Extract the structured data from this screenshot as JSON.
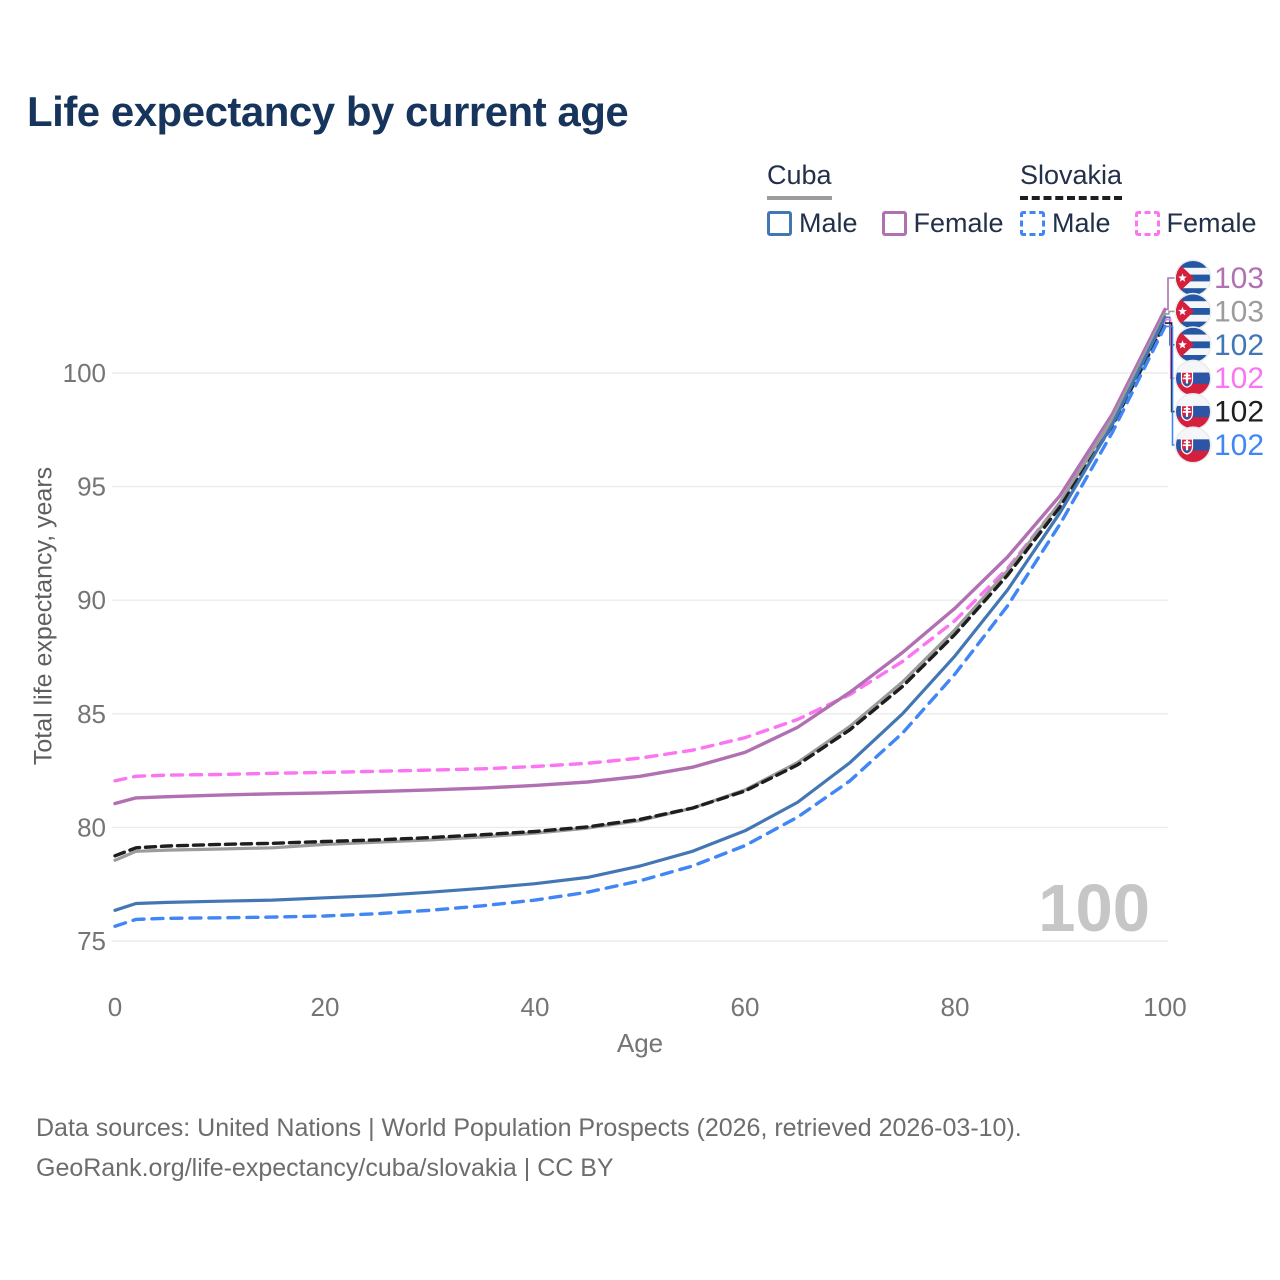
{
  "page": {
    "title": "Life expectancy by current age",
    "watermark": "100",
    "footer_line1": "Data sources: United Nations | World Population Prospects (2026, retrieved 2026-03-10).",
    "footer_line2": "GeoRank.org/life-expectancy/cuba/slovakia | CC BY"
  },
  "legend": {
    "groups": [
      {
        "country": "Cuba",
        "line_style": "solid",
        "underline_color": "#9c9c9c",
        "items": [
          {
            "label": "Male",
            "color": "#4377b4",
            "dashed": false
          },
          {
            "label": "Female",
            "color": "#b170b1",
            "dashed": false
          }
        ]
      },
      {
        "country": "Slovakia",
        "line_style": "dashed",
        "underline_color": "#1e1e1e",
        "items": [
          {
            "label": "Male",
            "color": "#4186f5",
            "dashed": true
          },
          {
            "label": "Female",
            "color": "#fb74f1",
            "dashed": true
          }
        ]
      }
    ]
  },
  "chart_data": {
    "type": "line",
    "title": "Life expectancy by current age",
    "xlabel": "Age",
    "ylabel": "Total life expectancy, years",
    "xlim": [
      0,
      100
    ],
    "ylim": [
      75,
      100
    ],
    "x_ticks": [
      0,
      20,
      40,
      60,
      80,
      100
    ],
    "y_ticks": [
      75,
      80,
      85,
      90,
      95,
      100
    ],
    "grid": "horizontal",
    "grid_color": "#ebebeb",
    "tick_color": "#757575",
    "legend_position": "top-right",
    "series": [
      {
        "name": "Slovakia Female",
        "country": "Slovakia",
        "sex": "Female",
        "color": "#fb74f1",
        "dash": "11 8",
        "width": 3.4,
        "points": [
          [
            0,
            82.05
          ],
          [
            2,
            82.25
          ],
          [
            5,
            82.3
          ],
          [
            10,
            82.33
          ],
          [
            15,
            82.38
          ],
          [
            20,
            82.42
          ],
          [
            25,
            82.47
          ],
          [
            30,
            82.52
          ],
          [
            35,
            82.58
          ],
          [
            40,
            82.68
          ],
          [
            45,
            82.82
          ],
          [
            50,
            83.05
          ],
          [
            55,
            83.4
          ],
          [
            60,
            83.95
          ],
          [
            65,
            84.75
          ],
          [
            70,
            85.85
          ],
          [
            75,
            87.3
          ],
          [
            80,
            89.1
          ],
          [
            85,
            91.4
          ],
          [
            90,
            94.3
          ],
          [
            95,
            97.9
          ],
          [
            100,
            102.35
          ]
        ]
      },
      {
        "name": "Cuba Female",
        "country": "Cuba",
        "sex": "Female",
        "color": "#b170b1",
        "dash": null,
        "width": 3.4,
        "points": [
          [
            0,
            81.05
          ],
          [
            2,
            81.3
          ],
          [
            5,
            81.35
          ],
          [
            10,
            81.42
          ],
          [
            15,
            81.48
          ],
          [
            20,
            81.52
          ],
          [
            25,
            81.58
          ],
          [
            30,
            81.65
          ],
          [
            35,
            81.73
          ],
          [
            40,
            81.85
          ],
          [
            45,
            82.0
          ],
          [
            50,
            82.25
          ],
          [
            55,
            82.65
          ],
          [
            60,
            83.3
          ],
          [
            65,
            84.4
          ],
          [
            70,
            85.95
          ],
          [
            75,
            87.7
          ],
          [
            80,
            89.65
          ],
          [
            85,
            91.9
          ],
          [
            90,
            94.6
          ],
          [
            95,
            98.2
          ],
          [
            100,
            102.8
          ]
        ]
      },
      {
        "name": "Cuba Both sexes",
        "country": "Cuba",
        "sex": "Both",
        "color": "#9c9c9c",
        "dash": null,
        "width": 3.2,
        "points": [
          [
            0,
            78.55
          ],
          [
            2,
            78.95
          ],
          [
            5,
            79.0
          ],
          [
            10,
            79.05
          ],
          [
            15,
            79.1
          ],
          [
            20,
            79.25
          ],
          [
            25,
            79.35
          ],
          [
            30,
            79.45
          ],
          [
            35,
            79.58
          ],
          [
            40,
            79.75
          ],
          [
            45,
            79.97
          ],
          [
            50,
            80.3
          ],
          [
            55,
            80.85
          ],
          [
            60,
            81.65
          ],
          [
            65,
            82.85
          ],
          [
            70,
            84.45
          ],
          [
            75,
            86.4
          ],
          [
            80,
            88.7
          ],
          [
            85,
            91.3
          ],
          [
            90,
            94.3
          ],
          [
            95,
            98.0
          ],
          [
            100,
            102.6
          ]
        ]
      },
      {
        "name": "Slovakia Both sexes",
        "country": "Slovakia",
        "sex": "Both",
        "color": "#1e1e1e",
        "dash": "10 6",
        "width": 3.4,
        "points": [
          [
            0,
            78.75
          ],
          [
            2,
            79.1
          ],
          [
            5,
            79.18
          ],
          [
            10,
            79.25
          ],
          [
            15,
            79.3
          ],
          [
            20,
            79.38
          ],
          [
            25,
            79.45
          ],
          [
            30,
            79.55
          ],
          [
            35,
            79.68
          ],
          [
            40,
            79.82
          ],
          [
            45,
            80.02
          ],
          [
            50,
            80.35
          ],
          [
            55,
            80.85
          ],
          [
            60,
            81.6
          ],
          [
            65,
            82.75
          ],
          [
            70,
            84.3
          ],
          [
            75,
            86.2
          ],
          [
            80,
            88.5
          ],
          [
            85,
            91.1
          ],
          [
            90,
            94.1
          ],
          [
            95,
            97.7
          ],
          [
            100,
            102.2
          ]
        ]
      },
      {
        "name": "Cuba Male",
        "country": "Cuba",
        "sex": "Male",
        "color": "#4377b4",
        "dash": null,
        "width": 3.2,
        "points": [
          [
            0,
            76.35
          ],
          [
            2,
            76.65
          ],
          [
            5,
            76.7
          ],
          [
            10,
            76.75
          ],
          [
            15,
            76.8
          ],
          [
            20,
            76.9
          ],
          [
            25,
            77.0
          ],
          [
            30,
            77.15
          ],
          [
            35,
            77.32
          ],
          [
            40,
            77.52
          ],
          [
            45,
            77.8
          ],
          [
            50,
            78.3
          ],
          [
            55,
            78.95
          ],
          [
            60,
            79.85
          ],
          [
            65,
            81.1
          ],
          [
            70,
            82.85
          ],
          [
            75,
            85.0
          ],
          [
            80,
            87.55
          ],
          [
            85,
            90.45
          ],
          [
            90,
            93.85
          ],
          [
            95,
            97.75
          ],
          [
            100,
            102.45
          ]
        ]
      },
      {
        "name": "Slovakia Male",
        "country": "Slovakia",
        "sex": "Male",
        "color": "#4186f5",
        "dash": "11 8",
        "width": 3.4,
        "points": [
          [
            0,
            75.65
          ],
          [
            2,
            75.95
          ],
          [
            5,
            76.0
          ],
          [
            10,
            76.02
          ],
          [
            15,
            76.05
          ],
          [
            20,
            76.1
          ],
          [
            25,
            76.2
          ],
          [
            30,
            76.35
          ],
          [
            35,
            76.55
          ],
          [
            40,
            76.8
          ],
          [
            45,
            77.15
          ],
          [
            50,
            77.65
          ],
          [
            55,
            78.3
          ],
          [
            60,
            79.2
          ],
          [
            65,
            80.45
          ],
          [
            70,
            82.05
          ],
          [
            75,
            84.15
          ],
          [
            80,
            86.75
          ],
          [
            85,
            89.75
          ],
          [
            90,
            93.35
          ],
          [
            95,
            97.4
          ],
          [
            100,
            102.05
          ]
        ]
      }
    ],
    "end_labels": [
      {
        "text": "103",
        "flag": "cuba",
        "series_index": 1,
        "color": "#b170b1"
      },
      {
        "text": "103",
        "flag": "cuba",
        "series_index": 2,
        "color": "#9c9c9c"
      },
      {
        "text": "102",
        "flag": "cuba",
        "series_index": 4,
        "color": "#4377b4"
      },
      {
        "text": "102",
        "flag": "slovakia",
        "series_index": 0,
        "color": "#fb74f1"
      },
      {
        "text": "102",
        "flag": "slovakia",
        "series_index": 3,
        "color": "#1e1e1e"
      },
      {
        "text": "102",
        "flag": "slovakia",
        "series_index": 5,
        "color": "#4186f5"
      }
    ]
  }
}
